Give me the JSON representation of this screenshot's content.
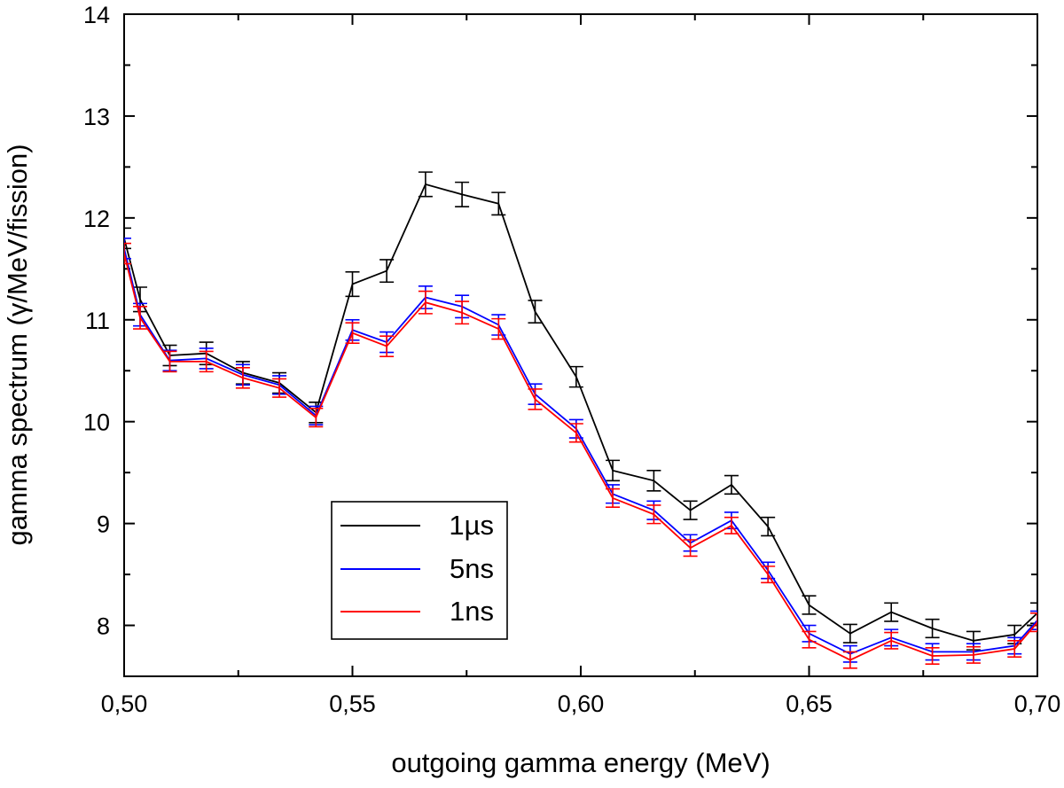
{
  "chart_data": {
    "type": "line",
    "title": "",
    "xlabel": "outgoing gamma energy (MeV)",
    "ylabel": "gamma spectrum (γ/MeV/fission)",
    "xlim": [
      0.5,
      0.7
    ],
    "ylim": [
      7.5,
      14
    ],
    "x_ticks": [
      0.5,
      0.55,
      0.6,
      0.65,
      0.7
    ],
    "x_tick_labels": [
      "0,50",
      "0,55",
      "0,60",
      "0,65",
      "0,70"
    ],
    "y_ticks": [
      8,
      9,
      10,
      11,
      12,
      13,
      14
    ],
    "y_tick_labels": [
      "8",
      "9",
      "10",
      "11",
      "12",
      "13",
      "14"
    ],
    "grid": false,
    "legend_position": "bottom-center",
    "x": [
      0.5,
      0.5035,
      0.51,
      0.518,
      0.526,
      0.534,
      0.542,
      0.55,
      0.5575,
      0.566,
      0.574,
      0.582,
      0.59,
      0.599,
      0.607,
      0.616,
      0.624,
      0.633,
      0.641,
      0.65,
      0.659,
      0.668,
      0.677,
      0.686,
      0.695,
      0.7
    ],
    "series": [
      {
        "name": "1µs",
        "color": "#000000",
        "values": [
          11.8,
          11.2,
          10.65,
          10.67,
          10.48,
          10.38,
          10.09,
          11.35,
          11.48,
          12.33,
          12.23,
          12.14,
          11.08,
          10.44,
          9.52,
          9.42,
          9.13,
          9.38,
          8.97,
          8.2,
          7.92,
          8.13,
          7.97,
          7.85,
          7.91,
          8.12
        ],
        "errors": [
          0.1,
          0.12,
          0.1,
          0.11,
          0.11,
          0.1,
          0.1,
          0.12,
          0.11,
          0.12,
          0.12,
          0.11,
          0.11,
          0.1,
          0.1,
          0.1,
          0.09,
          0.09,
          0.09,
          0.09,
          0.09,
          0.09,
          0.09,
          0.09,
          0.09,
          0.1
        ]
      },
      {
        "name": "5ns",
        "color": "#0000ff",
        "values": [
          11.7,
          11.05,
          10.6,
          10.62,
          10.46,
          10.36,
          10.06,
          10.9,
          10.78,
          11.22,
          11.13,
          10.95,
          10.27,
          9.93,
          9.29,
          9.13,
          8.81,
          9.03,
          8.54,
          7.92,
          7.72,
          7.88,
          7.74,
          7.74,
          7.8,
          8.05
        ],
        "errors": [
          0.1,
          0.11,
          0.1,
          0.1,
          0.1,
          0.09,
          0.09,
          0.1,
          0.1,
          0.11,
          0.11,
          0.1,
          0.1,
          0.09,
          0.09,
          0.09,
          0.08,
          0.08,
          0.08,
          0.08,
          0.08,
          0.08,
          0.08,
          0.08,
          0.08,
          0.09
        ]
      },
      {
        "name": "1ns",
        "color": "#ff0000",
        "values": [
          11.65,
          11.02,
          10.59,
          10.59,
          10.43,
          10.33,
          10.04,
          10.87,
          10.74,
          11.17,
          11.07,
          10.91,
          10.22,
          9.89,
          9.25,
          9.09,
          8.76,
          8.98,
          8.5,
          7.86,
          7.66,
          7.85,
          7.7,
          7.71,
          7.77,
          8.03
        ],
        "errors": [
          0.1,
          0.11,
          0.1,
          0.1,
          0.1,
          0.09,
          0.09,
          0.1,
          0.1,
          0.11,
          0.11,
          0.1,
          0.1,
          0.09,
          0.09,
          0.09,
          0.08,
          0.08,
          0.08,
          0.08,
          0.08,
          0.08,
          0.08,
          0.08,
          0.08,
          0.09
        ]
      }
    ]
  }
}
